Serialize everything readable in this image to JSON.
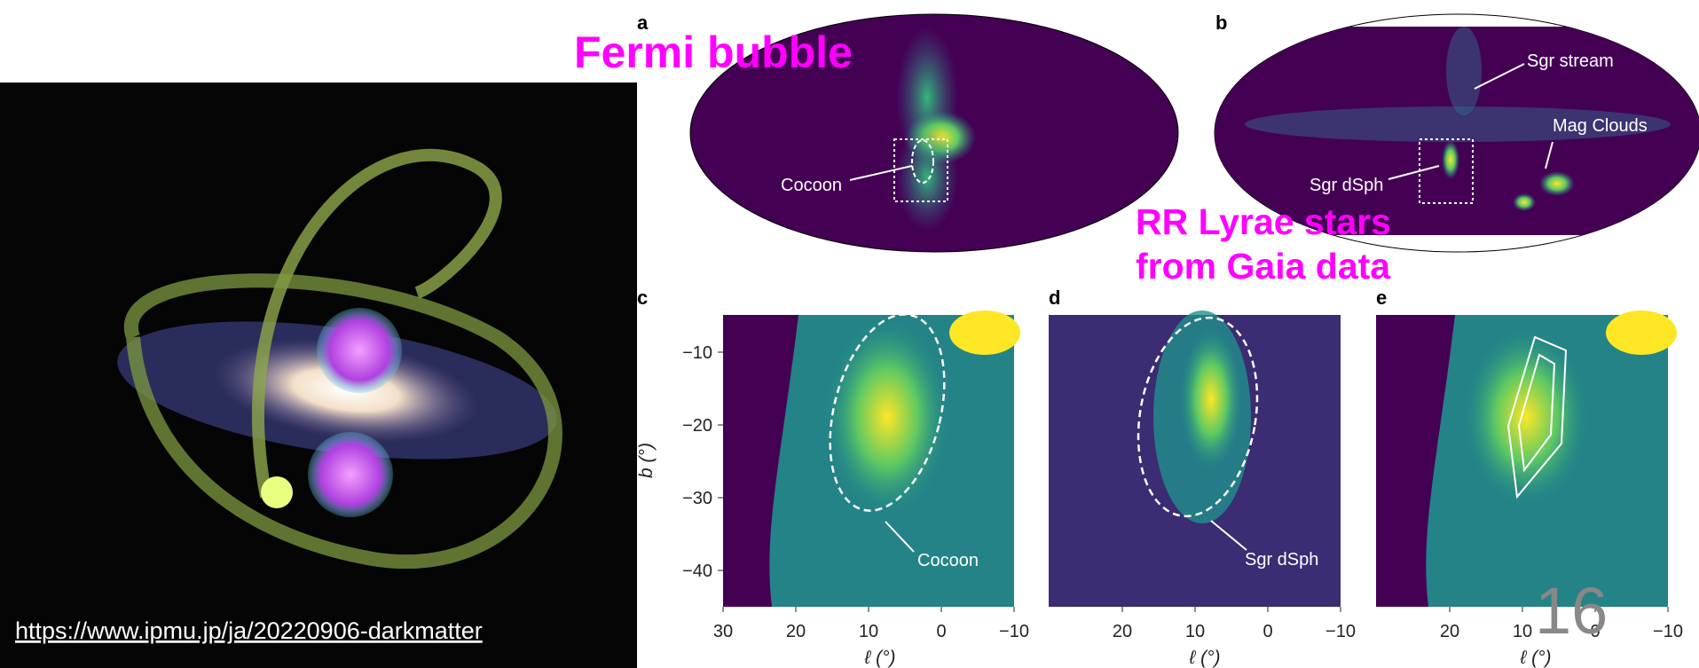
{
  "slide": {
    "fermi_label": "Fermi bubble",
    "rr_lyrae_label": [
      "RR Lyrae stars",
      "from Gaia data"
    ],
    "source_url": "https://www.ipmu.jp/ja/20220906-darkmatter",
    "page_number": "16",
    "panels": [
      {
        "label": "a",
        "annotations": [
          "Cocoon"
        ]
      },
      {
        "label": "b",
        "annotations": [
          "Sgr stream",
          "Mag Clouds",
          "Sgr dSph"
        ]
      },
      {
        "label": "c",
        "annotation": "Cocoon",
        "y_axis_label": "b (°)",
        "x_axis_label": "ℓ (°)",
        "y_ticks": [
          "−10",
          "−20",
          "−30",
          "−40"
        ],
        "x_ticks": [
          "30",
          "20",
          "10",
          "0",
          "−10"
        ]
      },
      {
        "label": "d",
        "annotation": "Sgr dSph",
        "x_axis_label": "ℓ (°)",
        "x_ticks": [
          "20",
          "10",
          "0",
          "−10"
        ]
      },
      {
        "label": "e",
        "x_axis_label": "ℓ (°)",
        "x_ticks": [
          "20",
          "10",
          "0",
          "−10"
        ]
      }
    ]
  }
}
